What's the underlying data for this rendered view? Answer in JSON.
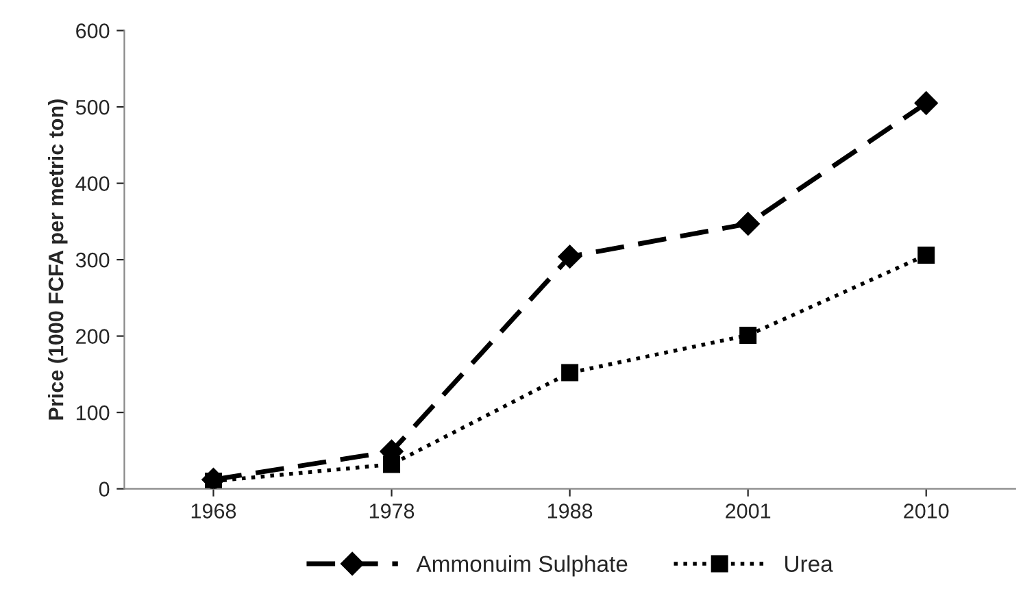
{
  "chart_data": {
    "type": "line",
    "ylabel": "Price (1000 FCFA per metric ton)",
    "categories": [
      "1968",
      "1978",
      "1988",
      "2001",
      "2010"
    ],
    "series": [
      {
        "name": "Ammonuim Sulphate",
        "color": "#000000",
        "values": [
          12,
          49,
          304,
          347,
          505
        ],
        "marker": "diamond",
        "line_style": "dashed"
      },
      {
        "name": "Urea",
        "color": "#000000",
        "values": [
          10,
          32,
          152,
          201,
          306
        ],
        "marker": "square",
        "line_style": "dotted"
      }
    ],
    "ylim": [
      0,
      600
    ],
    "yticks": [
      0,
      100,
      200,
      300,
      400,
      500,
      600
    ],
    "grid": false,
    "legend": "bottom"
  }
}
